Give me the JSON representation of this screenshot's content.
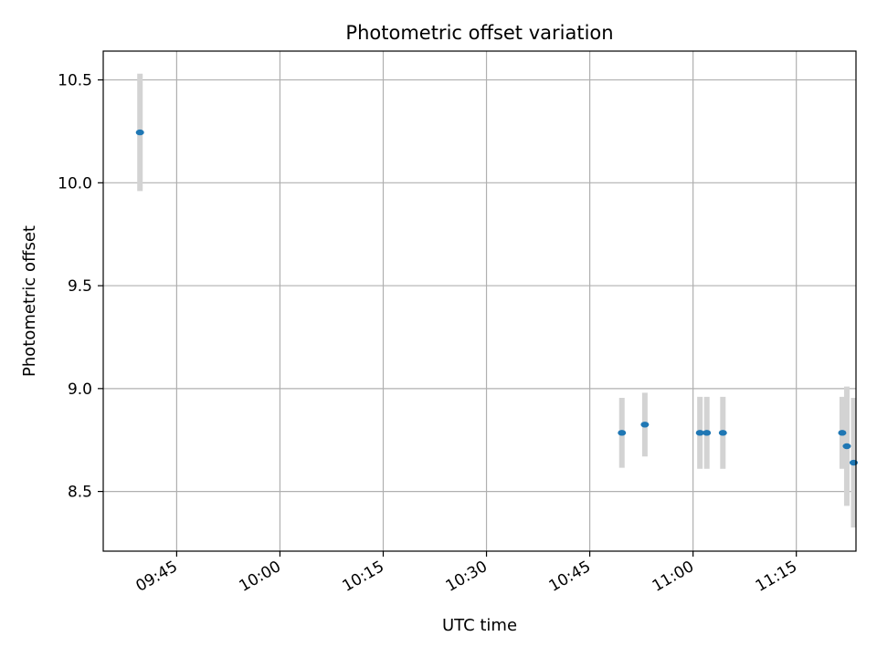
{
  "chart_data": {
    "type": "scatter",
    "title": "Photometric offset variation",
    "xlabel": "UTC time",
    "ylabel": "Photometric offset",
    "grid": true,
    "x_range": [
      "09:34:20",
      "11:23:40"
    ],
    "ylim": [
      8.21,
      10.64
    ],
    "x_ticks": [
      "09:45",
      "10:00",
      "10:15",
      "10:30",
      "10:45",
      "11:00",
      "11:15"
    ],
    "y_ticks": [
      8.5,
      9.0,
      9.5,
      10.0,
      10.5
    ],
    "y_tick_labels": [
      "8.5",
      "9.0",
      "9.5",
      "10.0",
      "10.5"
    ],
    "point_color": "#1f77b4",
    "errorbar_color": "#d3d3d3",
    "points": [
      {
        "x": "09:39:40",
        "y": 10.245,
        "yerr": 0.285
      },
      {
        "x": "10:49:40",
        "y": 8.785,
        "yerr": 0.17
      },
      {
        "x": "10:53:00",
        "y": 8.825,
        "yerr": 0.155
      },
      {
        "x": "11:01:00",
        "y": 8.785,
        "yerr": 0.175
      },
      {
        "x": "11:02:00",
        "y": 8.785,
        "yerr": 0.175
      },
      {
        "x": "11:04:20",
        "y": 8.785,
        "yerr": 0.175
      },
      {
        "x": "11:21:40",
        "y": 8.785,
        "yerr": 0.175
      },
      {
        "x": "11:22:20",
        "y": 8.72,
        "yerr": 0.29
      },
      {
        "x": "11:23:20",
        "y": 8.64,
        "yerr": 0.315
      }
    ]
  }
}
